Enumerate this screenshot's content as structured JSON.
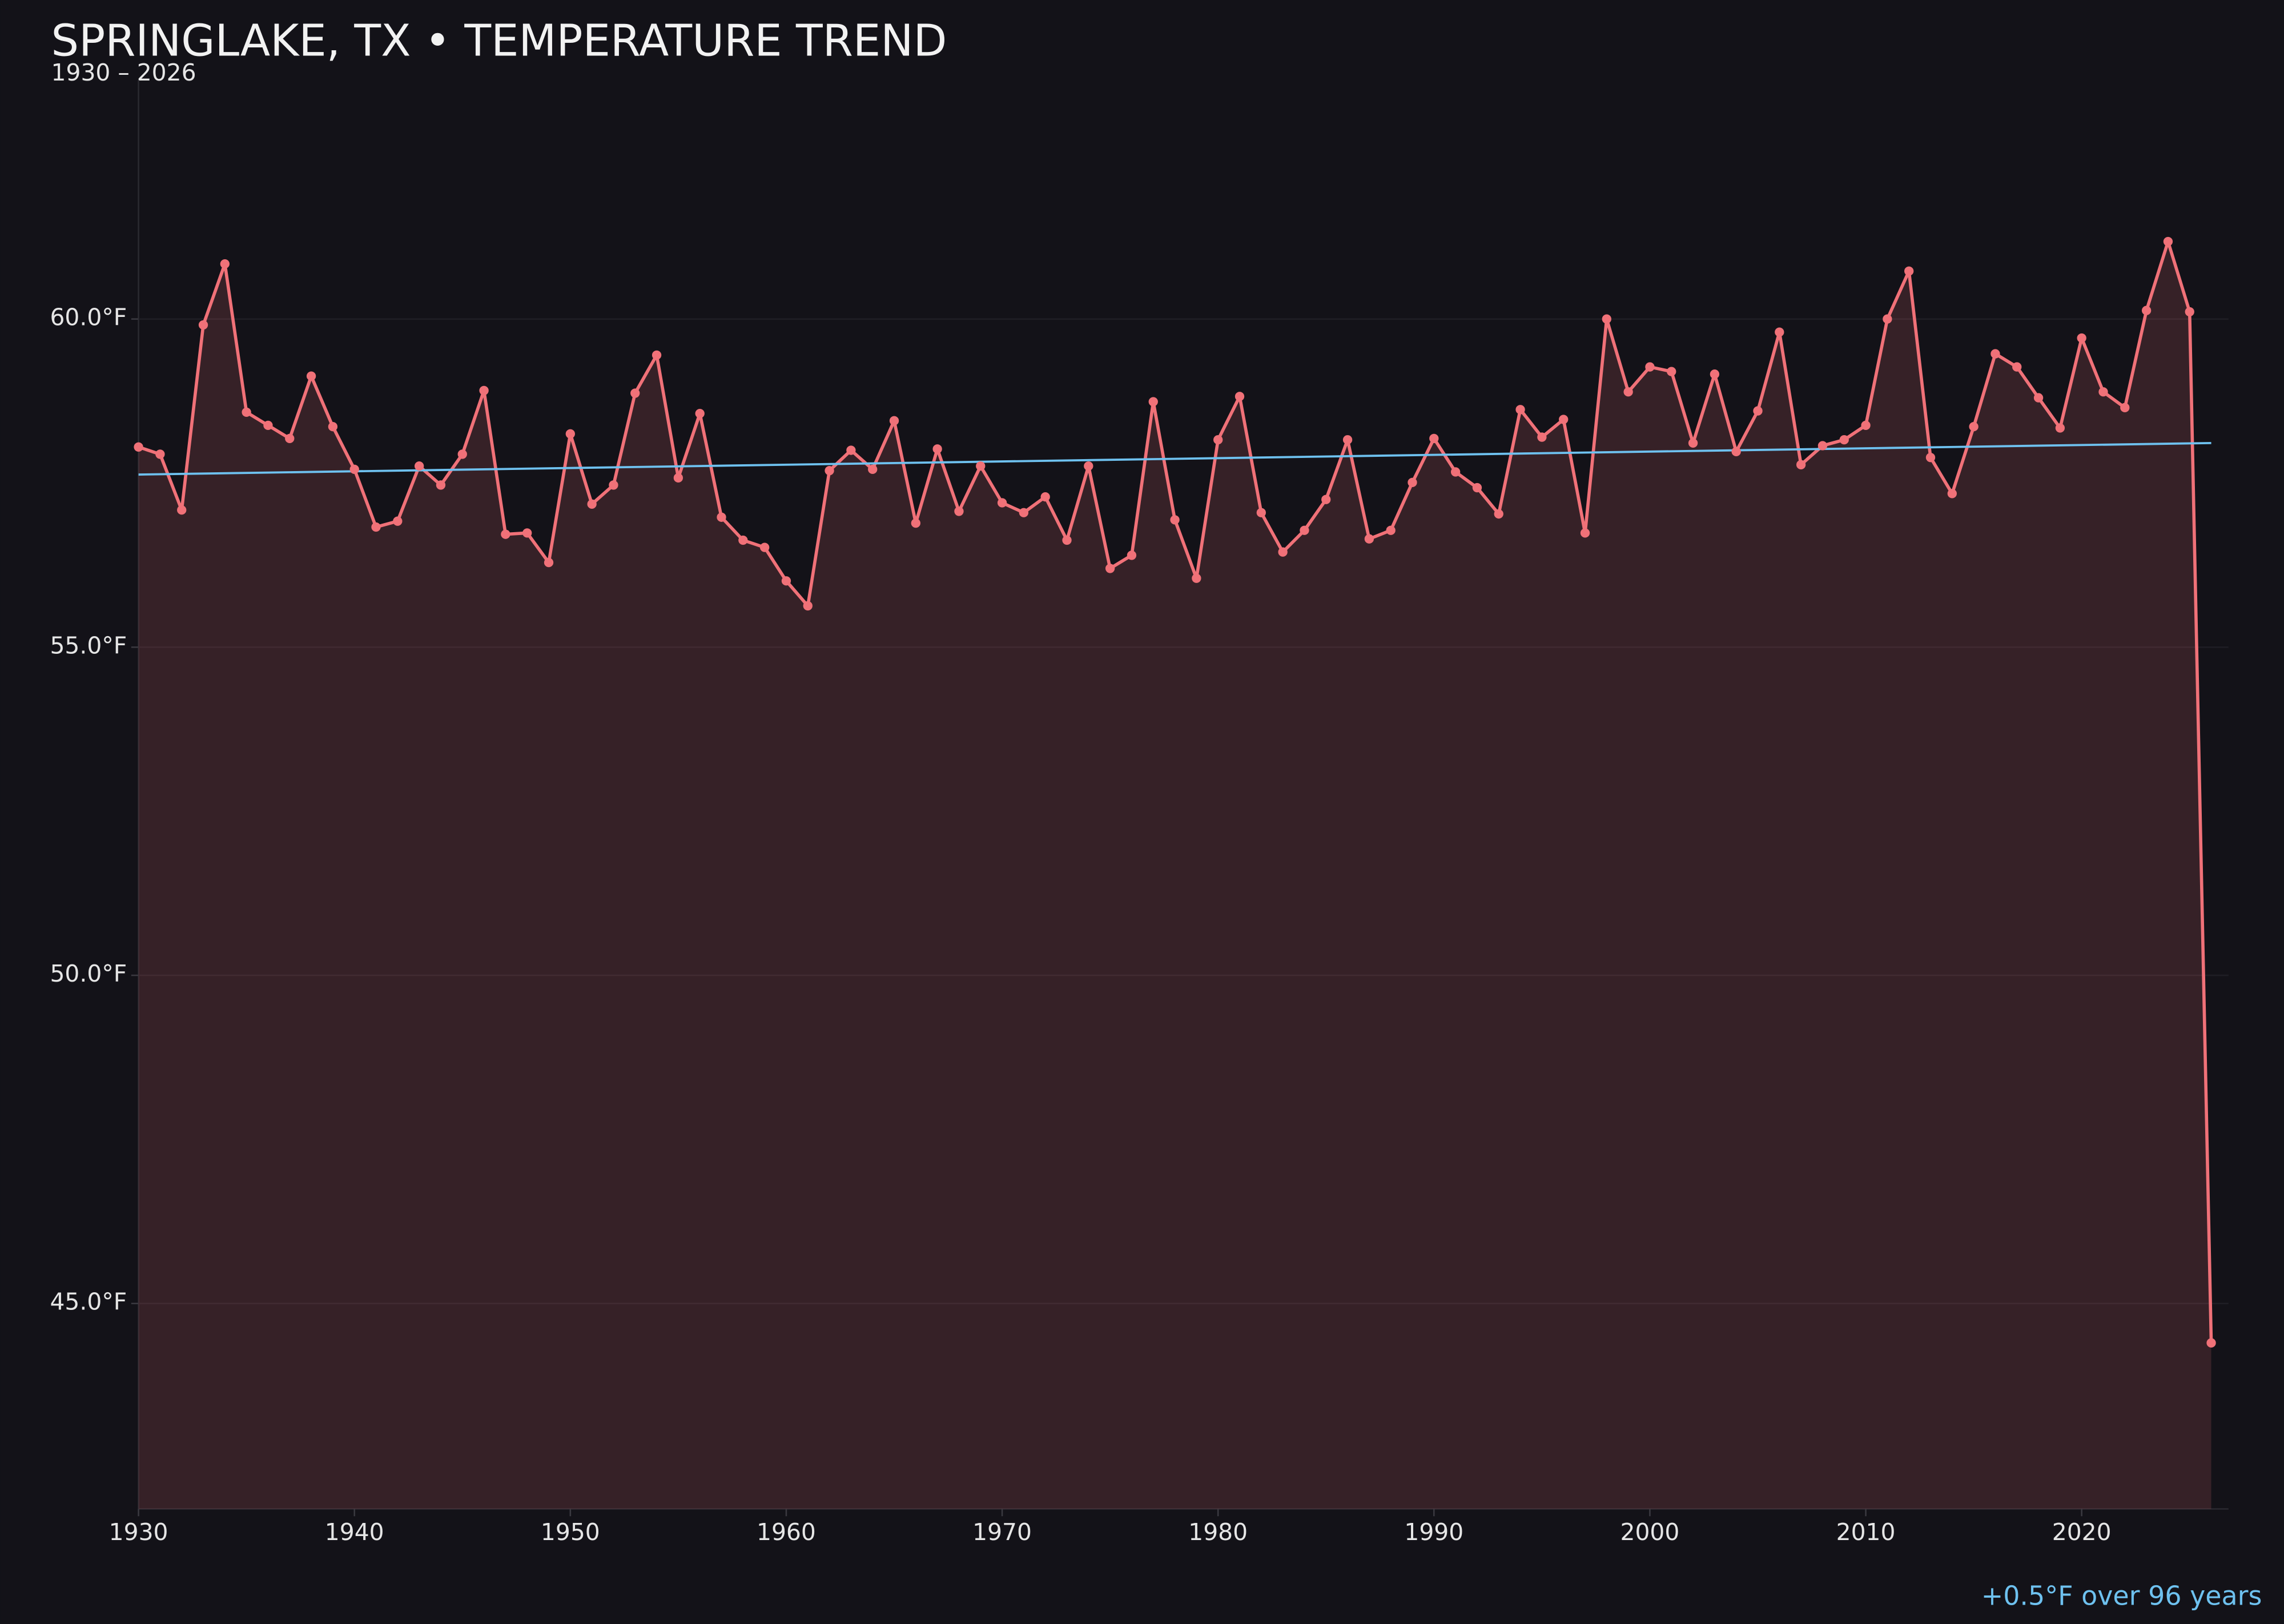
{
  "chart_data": {
    "type": "line",
    "title": "SPRINGLAKE, TX • TEMPERATURE TREND",
    "subtitle": "1930 – 2026",
    "annotation": "+0.5°F over 96 years",
    "x": [
      1930,
      1931,
      1932,
      1933,
      1934,
      1935,
      1936,
      1937,
      1938,
      1939,
      1940,
      1941,
      1942,
      1943,
      1944,
      1945,
      1946,
      1947,
      1948,
      1949,
      1950,
      1951,
      1952,
      1953,
      1954,
      1955,
      1956,
      1957,
      1958,
      1959,
      1960,
      1961,
      1962,
      1963,
      1964,
      1965,
      1966,
      1967,
      1968,
      1969,
      1970,
      1971,
      1972,
      1973,
      1974,
      1975,
      1976,
      1977,
      1978,
      1979,
      1980,
      1981,
      1982,
      1983,
      1984,
      1985,
      1986,
      1987,
      1988,
      1989,
      1990,
      1991,
      1992,
      1993,
      1994,
      1995,
      1996,
      1997,
      1998,
      1999,
      2000,
      2001,
      2002,
      2003,
      2004,
      2005,
      2006,
      2007,
      2008,
      2009,
      2010,
      2011,
      2012,
      2013,
      2014,
      2015,
      2016,
      2017,
      2018,
      2019,
      2020,
      2021,
      2022,
      2023,
      2024,
      2025,
      2026
    ],
    "series": [
      {
        "color": "#f07178",
        "values": [
          58.05,
          57.94,
          57.09,
          59.91,
          60.84,
          58.58,
          58.38,
          58.18,
          59.13,
          58.36,
          57.71,
          56.83,
          56.92,
          57.76,
          57.47,
          57.94,
          58.91,
          56.72,
          56.74,
          56.29,
          58.25,
          57.18,
          57.47,
          58.87,
          59.45,
          57.58,
          58.56,
          56.98,
          56.63,
          56.52,
          56.01,
          55.63,
          57.69,
          58.0,
          57.71,
          58.45,
          56.89,
          58.02,
          57.07,
          57.76,
          57.2,
          57.05,
          57.29,
          56.63,
          57.76,
          56.2,
          56.4,
          58.74,
          56.94,
          56.05,
          58.16,
          58.82,
          57.05,
          56.45,
          56.78,
          57.25,
          58.16,
          56.65,
          56.78,
          57.51,
          58.18,
          57.67,
          57.43,
          57.03,
          58.62,
          58.2,
          58.47,
          56.74,
          60.0,
          58.89,
          59.27,
          59.2,
          58.11,
          59.16,
          57.98,
          58.6,
          59.8,
          57.78,
          58.07,
          58.16,
          58.38,
          60.0,
          60.73,
          57.89,
          57.34,
          58.36,
          59.47,
          59.27,
          58.8,
          58.34,
          59.71,
          58.89,
          58.65,
          60.13,
          61.18,
          60.11,
          44.4
        ]
      }
    ],
    "trend": {
      "x": [
        1930,
        2026
      ],
      "values": [
        57.63,
        58.11
      ],
      "color": "#6ec1ef"
    },
    "fill": true,
    "xlim": [
      1930,
      2026.8
    ],
    "ylim": [
      41.87,
      63.64
    ],
    "xticks": [
      1930,
      1940,
      1950,
      1960,
      1970,
      1980,
      1990,
      2000,
      2010,
      2020
    ],
    "yticks": [
      {
        "value": 45,
        "label": "45.0°F"
      },
      {
        "value": 50,
        "label": "50.0°F"
      },
      {
        "value": 55,
        "label": "55.0°F"
      },
      {
        "value": 60,
        "label": "60.0°F"
      }
    ],
    "grid": true
  }
}
